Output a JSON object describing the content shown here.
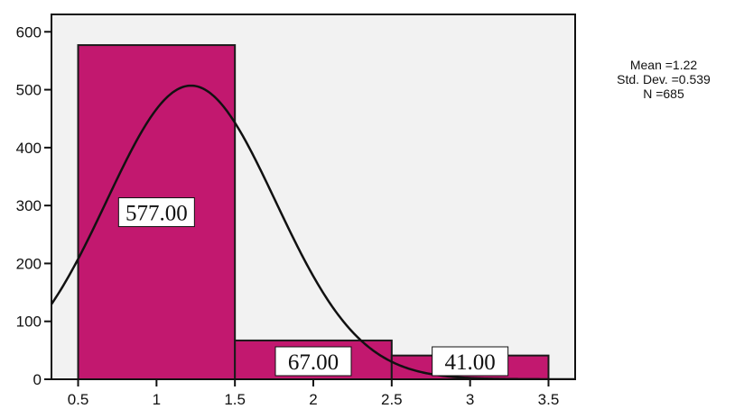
{
  "chart_data": {
    "type": "bar",
    "title": "",
    "xlabel": "",
    "ylabel": "",
    "bins": [
      {
        "x0": 0.5,
        "x1": 1.5,
        "value": 577,
        "label": "577.00"
      },
      {
        "x0": 1.5,
        "x1": 2.5,
        "value": 67,
        "label": "67.00"
      },
      {
        "x0": 2.5,
        "x1": 3.5,
        "value": 41,
        "label": "41.00"
      }
    ],
    "x_ticks": [
      {
        "value": 0.5,
        "label": "0.5"
      },
      {
        "value": 1,
        "label": "1"
      },
      {
        "value": 1.5,
        "label": "1.5"
      },
      {
        "value": 2,
        "label": "2"
      },
      {
        "value": 2.5,
        "label": "2.5"
      },
      {
        "value": 3,
        "label": "3"
      },
      {
        "value": 3.5,
        "label": "3.5"
      }
    ],
    "y_ticks": [
      {
        "value": 0,
        "label": "0"
      },
      {
        "value": 100,
        "label": "100"
      },
      {
        "value": 200,
        "label": "200"
      },
      {
        "value": 300,
        "label": "300"
      },
      {
        "value": 400,
        "label": "400"
      },
      {
        "value": 500,
        "label": "500"
      },
      {
        "value": 600,
        "label": "600"
      }
    ],
    "xlim": [
      0.33,
      3.67
    ],
    "ylim": [
      0,
      630
    ],
    "normal_curve": {
      "mean": 1.22,
      "std_dev": 0.539,
      "n": 685,
      "bin_width": 1
    },
    "stats": {
      "mean": "Mean =1.22",
      "std_dev": "Std. Dev. =0.539",
      "n": "N =685"
    },
    "colors": {
      "bar": "#c2186f",
      "bar_edge": "#1a1a1a",
      "plot_bg": "#f2f2f2",
      "curve": "#111111",
      "axis": "#111111"
    },
    "grid": false,
    "legend": "none"
  }
}
